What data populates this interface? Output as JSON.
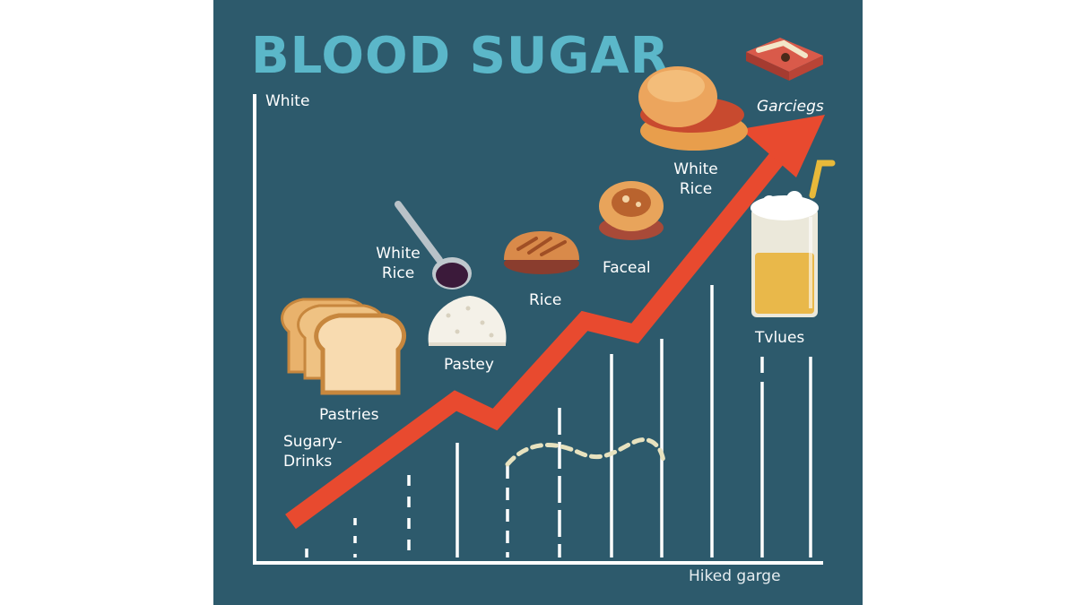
{
  "title": "BLOOD SUGAR",
  "axis": {
    "y_label": "White",
    "x_label": "Hiked garge"
  },
  "labels": {
    "sugary_drinks": "Sugary-\nDrinks",
    "pastries": "Pastries",
    "pastey": "Pastey",
    "white_rice_spoon": "White\nRice",
    "rice": "Rice",
    "faceal": "Faceal",
    "white_rice_top": "White\nRice",
    "garcieges": "Garciegs",
    "tvlues": "Tvlues"
  },
  "colors": {
    "background": "#2d5a6c",
    "title": "#5bb7c9",
    "arrow": "#e84a2f",
    "axis": "#ffffff"
  },
  "icons": [
    "bread-slices-icon",
    "spoon-icon",
    "rice-pile-icon",
    "pie-icon",
    "pastry-icon",
    "burger-icon",
    "toast-icon",
    "drink-glass-icon"
  ]
}
